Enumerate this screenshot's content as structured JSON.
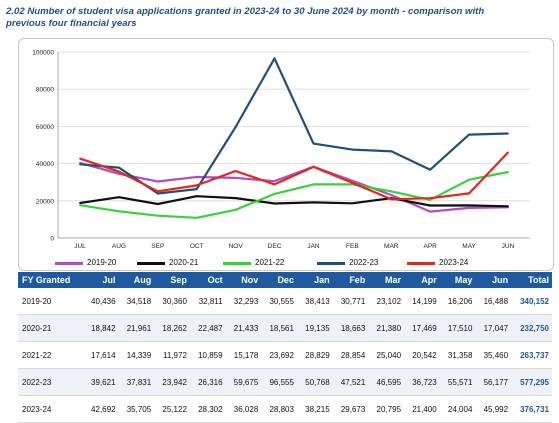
{
  "title": "2.02 Number of student visa applications granted in 2023-24 to 30 June 2024 by month - comparison with previous four financial years",
  "chart_data": {
    "type": "line",
    "categories": [
      "JUL",
      "AUG",
      "SEP",
      "OCT",
      "NOV",
      "DEC",
      "JAN",
      "FEB",
      "MAR",
      "APR",
      "MAY",
      "JUN"
    ],
    "ylim": [
      0,
      100000
    ],
    "yticks": [
      "0",
      "20000",
      "40000",
      "60000",
      "80000",
      "100000"
    ],
    "grid": true,
    "legend_position": "bottom",
    "series": [
      {
        "name": "2019-20",
        "color": "#b24fbf",
        "values": [
          40436,
          34518,
          30360,
          32811,
          32293,
          30555,
          38413,
          30771,
          23102,
          14199,
          16206,
          16488
        ]
      },
      {
        "name": "2020-21",
        "color": "#111111",
        "values": [
          18842,
          21961,
          18262,
          22487,
          21433,
          18561,
          19135,
          18663,
          21380,
          17469,
          17510,
          17047
        ]
      },
      {
        "name": "2021-22",
        "color": "#38d13a",
        "values": [
          17614,
          14339,
          11972,
          10859,
          15178,
          23692,
          28829,
          28854,
          25040,
          20542,
          31358,
          35460
        ]
      },
      {
        "name": "2022-23",
        "color": "#1f4f7f",
        "values": [
          39621,
          37831,
          23942,
          26316,
          59675,
          96555,
          50768,
          47521,
          46595,
          36723,
          55571,
          56177
        ]
      },
      {
        "name": "2023-24",
        "color": "#e0281e",
        "values": [
          42692,
          35705,
          25122,
          28302,
          36028,
          28803,
          38215,
          29673,
          20795,
          21400,
          24004,
          45992
        ]
      }
    ]
  },
  "table": {
    "headers": [
      "FY Granted",
      "Jul",
      "Aug",
      "Sep",
      "Oct",
      "Nov",
      "Dec",
      "Jan",
      "Feb",
      "Mar",
      "Apr",
      "May",
      "Jun",
      "Total"
    ],
    "rows": [
      [
        "2019-20",
        "40,436",
        "34,518",
        "30,360",
        "32,811",
        "32,293",
        "30,555",
        "38,413",
        "30,771",
        "23,102",
        "14,199",
        "16,206",
        "16,488",
        "340,152"
      ],
      [
        "2020-21",
        "18,842",
        "21,961",
        "18,262",
        "22,487",
        "21,433",
        "18,561",
        "19,135",
        "18,663",
        "21,380",
        "17,469",
        "17,510",
        "17,047",
        "232,750"
      ],
      [
        "2021-22",
        "17,614",
        "14,339",
        "11,972",
        "10,859",
        "15,178",
        "23,692",
        "28,829",
        "28,854",
        "25,040",
        "20,542",
        "31,358",
        "35,460",
        "263,737"
      ],
      [
        "2022-23",
        "39,621",
        "37,831",
        "23,942",
        "26,316",
        "59,675",
        "96,555",
        "50,768",
        "47,521",
        "46,595",
        "36,723",
        "55,571",
        "56,177",
        "577,295"
      ],
      [
        "2023-24",
        "42,692",
        "35,705",
        "25,122",
        "28,302",
        "36,028",
        "28,803",
        "38,215",
        "29,673",
        "20,795",
        "21,400",
        "24,004",
        "45,992",
        "376,731"
      ]
    ]
  }
}
